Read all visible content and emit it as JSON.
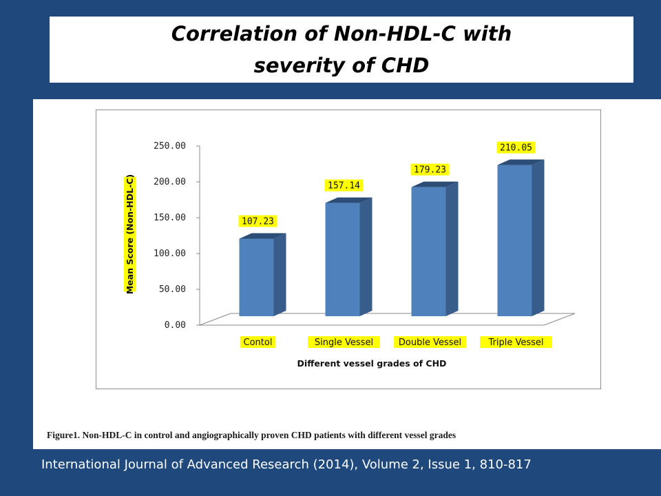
{
  "slide": {
    "title_line1": "Correlation of Non-HDL-C with",
    "title_line2": "severity of CHD",
    "caption": "Figure1. Non-HDL-C in control and angiographically proven CHD patients with different vessel grades",
    "citation": "International Journal of Advanced Research (2014), Volume 2, Issue 1, 810-817"
  },
  "colors": {
    "background": "#1f497d",
    "bar_front": "#4f81bd",
    "bar_side": "#385d8a",
    "bar_top": "#2c4d75",
    "label_highlight": "#ffff00"
  },
  "chart_data": {
    "type": "bar",
    "title": "",
    "categories": [
      "Contol",
      "Single Vessel",
      "Double Vessel",
      "Triple Vessel"
    ],
    "values": [
      107.23,
      157.14,
      179.23,
      210.05
    ],
    "value_labels": [
      "107.23",
      "157.14",
      "179.23",
      "210.05"
    ],
    "xlabel": "Different vessel grades of CHD",
    "ylabel": "Mean Score (Non-HDL-C)",
    "ylim": [
      0,
      250
    ],
    "yticks": [
      "0.00",
      "50.00",
      "100.00",
      "150.00",
      "200.00",
      "250.00"
    ],
    "grid": false,
    "legend": "none",
    "style": "3d"
  }
}
